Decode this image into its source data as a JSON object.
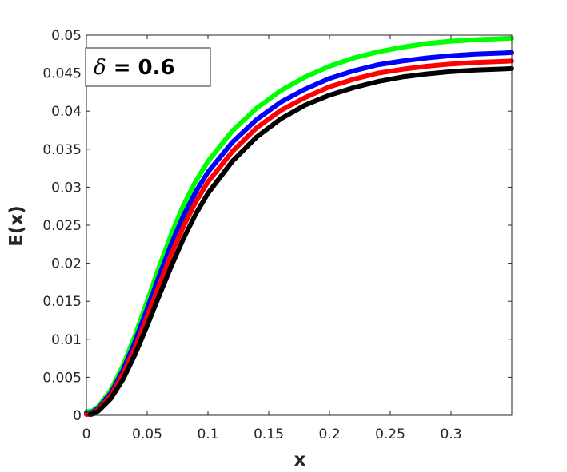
{
  "chart_data": {
    "type": "line",
    "xlabel": "x",
    "ylabel": "E(x)",
    "xlim": [
      0,
      0.35
    ],
    "ylim": [
      0,
      0.05
    ],
    "xticks": [
      "0",
      "0.05",
      "0.1",
      "0.15",
      "0.2",
      "0.25",
      "0.3"
    ],
    "xtick_values": [
      0,
      0.05,
      0.1,
      0.15,
      0.2,
      0.25,
      0.3
    ],
    "yticks": [
      "0",
      "0.005",
      "0.01",
      "0.015",
      "0.02",
      "0.025",
      "0.03",
      "0.035",
      "0.04",
      "0.045",
      "0.05"
    ],
    "ytick_values": [
      0,
      0.005,
      0.01,
      0.015,
      0.02,
      0.025,
      0.03,
      0.035,
      0.04,
      0.045,
      0.05
    ],
    "grid": false,
    "annotation": {
      "symbol": "δ",
      "text": " = 0.6",
      "position": "top-left"
    },
    "series": [
      {
        "color": "#00ff00",
        "x": [
          0,
          0.005,
          0.01,
          0.02,
          0.03,
          0.04,
          0.05,
          0.06,
          0.07,
          0.08,
          0.09,
          0.1,
          0.12,
          0.14,
          0.16,
          0.18,
          0.2,
          0.22,
          0.24,
          0.26,
          0.28,
          0.3,
          0.32,
          0.35
        ],
        "y": [
          0.0005,
          0.0006,
          0.0012,
          0.0033,
          0.0065,
          0.0105,
          0.015,
          0.0196,
          0.0239,
          0.0277,
          0.0308,
          0.0334,
          0.0374,
          0.0404,
          0.0427,
          0.0445,
          0.0459,
          0.047,
          0.0478,
          0.0484,
          0.0489,
          0.0492,
          0.0494,
          0.0496
        ]
      },
      {
        "color": "#0000ff",
        "x": [
          0,
          0.005,
          0.01,
          0.02,
          0.03,
          0.04,
          0.05,
          0.06,
          0.07,
          0.08,
          0.09,
          0.1,
          0.12,
          0.14,
          0.16,
          0.18,
          0.2,
          0.22,
          0.24,
          0.26,
          0.28,
          0.3,
          0.32,
          0.35
        ],
        "y": [
          0.0003,
          0.0004,
          0.001,
          0.0029,
          0.0059,
          0.0097,
          0.014,
          0.0184,
          0.0226,
          0.0263,
          0.0294,
          0.032,
          0.0359,
          0.0389,
          0.0412,
          0.0429,
          0.0443,
          0.0453,
          0.0461,
          0.0466,
          0.047,
          0.0473,
          0.0475,
          0.0477
        ]
      },
      {
        "color": "#ff0000",
        "x": [
          0,
          0.005,
          0.01,
          0.02,
          0.03,
          0.04,
          0.05,
          0.06,
          0.07,
          0.08,
          0.09,
          0.1,
          0.12,
          0.14,
          0.16,
          0.18,
          0.2,
          0.22,
          0.24,
          0.26,
          0.28,
          0.3,
          0.32,
          0.35
        ],
        "y": [
          0.0001,
          0.0002,
          0.0008,
          0.0026,
          0.0054,
          0.0089,
          0.013,
          0.0172,
          0.0213,
          0.0249,
          0.0281,
          0.0307,
          0.0347,
          0.0378,
          0.0401,
          0.0418,
          0.0432,
          0.0442,
          0.045,
          0.0455,
          0.0459,
          0.0462,
          0.0464,
          0.0466
        ]
      },
      {
        "color": "#000000",
        "x": [
          0.003,
          0.006,
          0.01,
          0.02,
          0.03,
          0.04,
          0.05,
          0.06,
          0.07,
          0.08,
          0.09,
          0.1,
          0.12,
          0.14,
          0.16,
          0.18,
          0.2,
          0.22,
          0.24,
          0.26,
          0.28,
          0.3,
          0.32,
          0.35
        ],
        "y": [
          0.0001,
          0.0002,
          0.0006,
          0.0022,
          0.0047,
          0.008,
          0.0118,
          0.0158,
          0.0197,
          0.0233,
          0.0265,
          0.0292,
          0.0334,
          0.0366,
          0.039,
          0.0408,
          0.0421,
          0.0431,
          0.0439,
          0.0445,
          0.0449,
          0.0452,
          0.0454,
          0.0456
        ]
      }
    ]
  }
}
